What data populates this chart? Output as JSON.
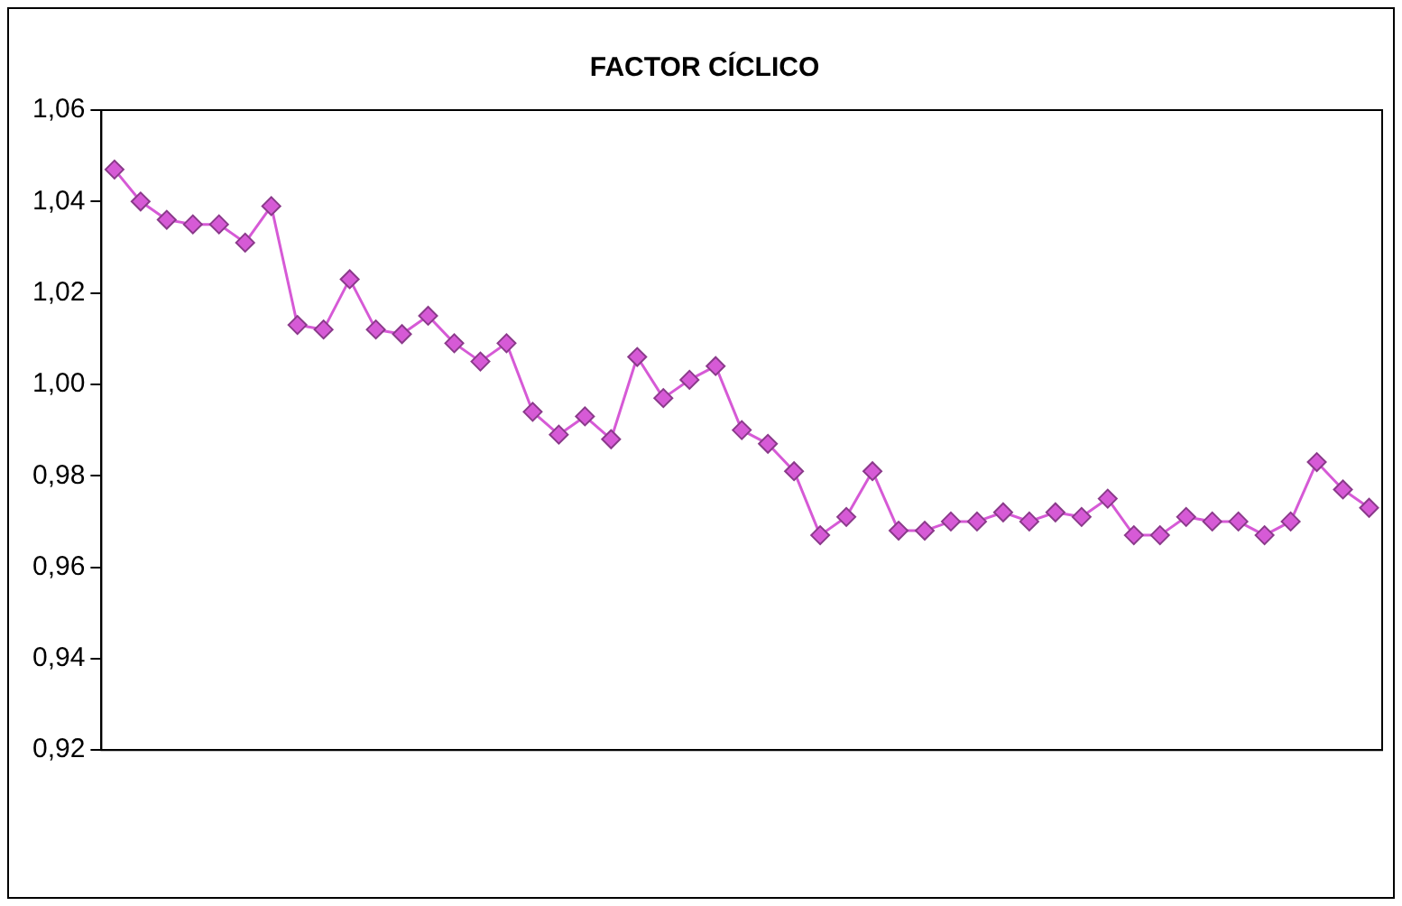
{
  "chart_data": {
    "type": "line",
    "title": "FACTOR CÍCLICO",
    "categories": [
      null,
      null,
      null,
      null,
      null,
      null,
      null,
      null,
      null,
      null,
      null,
      null,
      null,
      null,
      null,
      null,
      null,
      null,
      null,
      null,
      null,
      null,
      null,
      null,
      null,
      null,
      null,
      null,
      null,
      null,
      null,
      null,
      null,
      null,
      null,
      null,
      null,
      null,
      null,
      null,
      null,
      null,
      null,
      null,
      null,
      null,
      null,
      null,
      null
    ],
    "series": [
      {
        "color": "#d65ad6",
        "values": [
          1.047,
          1.04,
          1.036,
          1.035,
          1.035,
          1.031,
          1.039,
          1.013,
          1.012,
          1.023,
          1.012,
          1.011,
          1.015,
          1.009,
          1.005,
          1.009,
          0.994,
          0.989,
          0.993,
          0.988,
          1.006,
          0.997,
          1.001,
          1.004,
          0.99,
          0.987,
          0.981,
          0.967,
          0.971,
          0.981,
          0.968,
          0.968,
          0.97,
          0.97,
          0.972,
          0.97,
          0.972,
          0.971,
          0.975,
          0.967,
          0.967,
          0.971,
          0.97,
          0.97,
          0.967,
          0.97,
          0.983,
          0.977,
          0.973
        ]
      }
    ],
    "ylim": [
      0.92,
      1.06
    ],
    "yticks": [
      {
        "value": 0.92,
        "label": "0,92"
      },
      {
        "value": 0.94,
        "label": "0,94"
      },
      {
        "value": 0.96,
        "label": "0,96"
      },
      {
        "value": 0.98,
        "label": "0,98"
      },
      {
        "value": 1.0,
        "label": "1,00"
      },
      {
        "value": 1.02,
        "label": "1,02"
      },
      {
        "value": 1.04,
        "label": "1,04"
      },
      {
        "value": 1.06,
        "label": "1,06"
      }
    ],
    "grid": false,
    "legend": false,
    "marker": "diamond",
    "line_style": "solid"
  }
}
